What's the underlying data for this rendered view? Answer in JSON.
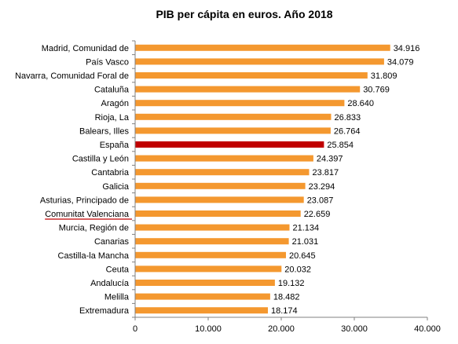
{
  "chart_data": {
    "type": "bar",
    "orientation": "horizontal",
    "title": "PIB per cápita en euros. Año 2018",
    "xlabel": "",
    "ylabel": "",
    "xlim": [
      0,
      40000
    ],
    "ticks": [
      {
        "value": 0,
        "label": "0"
      },
      {
        "value": 10000,
        "label": "10.000"
      },
      {
        "value": 20000,
        "label": "20.000"
      },
      {
        "value": 30000,
        "label": "30.000"
      },
      {
        "value": 40000,
        "label": "40.000"
      }
    ],
    "grid": false,
    "legend": "none",
    "colors": {
      "bar": "#F4982F",
      "highlight": "#C00000",
      "underline": "#C00000",
      "axis": "#808080"
    },
    "highlight_category": "España",
    "underlined_category": "Comunitat Valenciana",
    "categories": [
      "Madrid, Comunidad de",
      "País Vasco",
      "Navarra, Comunidad Foral de",
      "Cataluña",
      "Aragón",
      "Rioja, La",
      "Balears, Illes",
      "España",
      "Castilla y León",
      "Cantabria",
      "Galicia",
      "Asturias, Principado de",
      "Comunitat Valenciana",
      "Murcia, Región de",
      "Canarias",
      "Castilla-la Mancha",
      "Ceuta",
      "Andalucía",
      "Melilla",
      "Extremadura"
    ],
    "values": [
      34916,
      34079,
      31809,
      30769,
      28640,
      26833,
      26764,
      25854,
      24397,
      23817,
      23294,
      23087,
      22659,
      21134,
      21031,
      20645,
      20032,
      19132,
      18482,
      18174
    ],
    "value_labels": [
      "34.916",
      "34.079",
      "31.809",
      "30.769",
      "28.640",
      "26.833",
      "26.764",
      "25.854",
      "24.397",
      "23.817",
      "23.294",
      "23.087",
      "22.659",
      "21.134",
      "21.031",
      "20.645",
      "20.032",
      "19.132",
      "18.482",
      "18.174"
    ]
  }
}
